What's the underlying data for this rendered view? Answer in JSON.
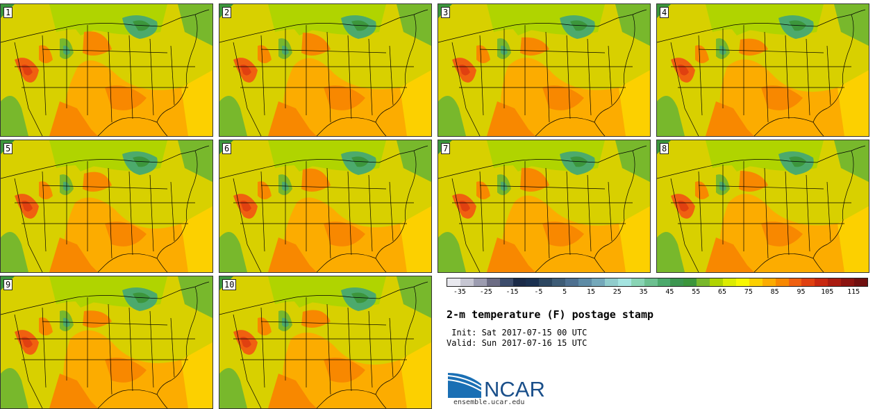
{
  "panels": [
    "1",
    "2",
    "3",
    "4",
    "5",
    "6",
    "7",
    "8",
    "9",
    "10"
  ],
  "colorbar": {
    "colors": [
      "#e8e8ee",
      "#c6c6d2",
      "#9c9cb0",
      "#6c6c84",
      "#3c4c6c",
      "#1a2a48",
      "#1a3050",
      "#2c4660",
      "#3e5c76",
      "#4e7090",
      "#5e8ca6",
      "#74a8ba",
      "#90cccc",
      "#a4e4e0",
      "#88d4b4",
      "#6cc090",
      "#4caa6c",
      "#3c9650",
      "#3c963c",
      "#78b82c",
      "#b0d400",
      "#dcec00",
      "#f8f800",
      "#fcd000",
      "#fcac00",
      "#f88800",
      "#f06010",
      "#e04010",
      "#c82810",
      "#aa1c10",
      "#8c1410",
      "#701010"
    ],
    "ticks": [
      "-35",
      "-25",
      "-15",
      "-5",
      "5",
      "15",
      "25",
      "35",
      "45",
      "55",
      "65",
      "75",
      "85",
      "95",
      "105",
      "115"
    ]
  },
  "title": "2-m temperature (F) postage stamp",
  "init": " Init: Sat 2017-07-15 00 UTC",
  "valid": "Valid: Sun 2017-07-16 15 UTC",
  "logo_text": "NCAR",
  "logo_url": "ensemble.ucar.edu"
}
